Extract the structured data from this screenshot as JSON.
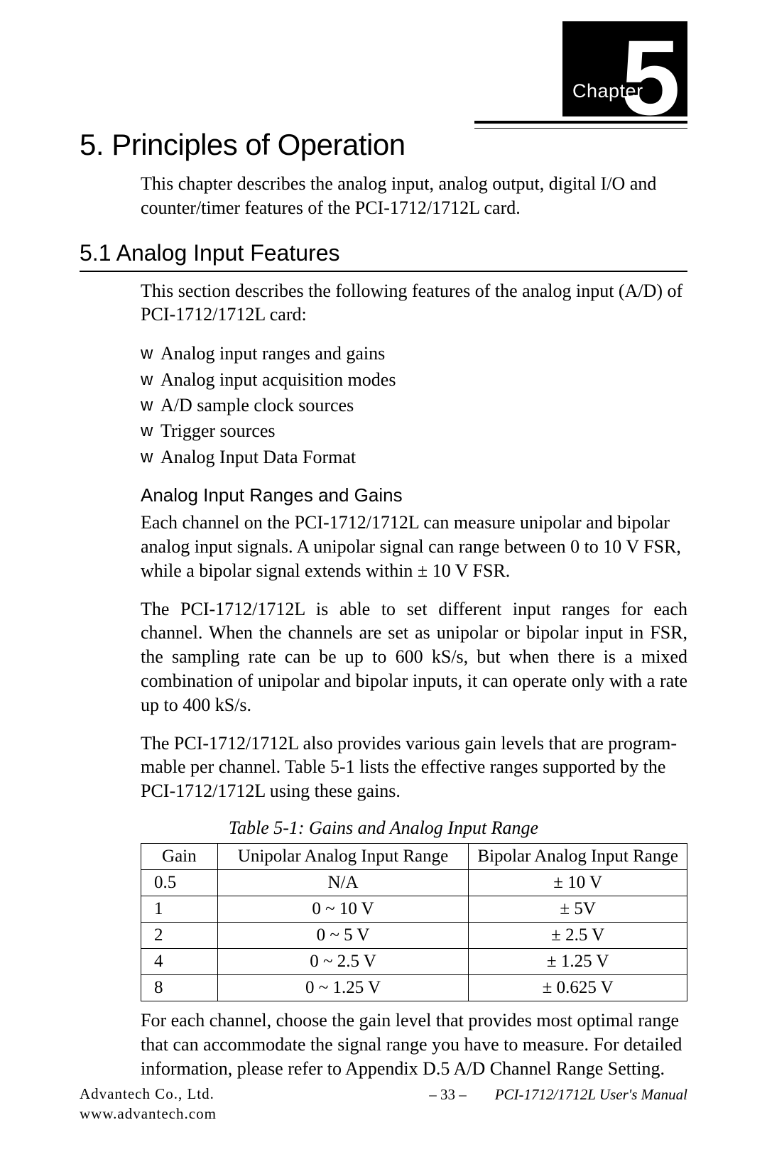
{
  "chapter_badge": {
    "label": "Chapter",
    "number": "5",
    "bg_color": "#000000",
    "fg_color": "#ffffff"
  },
  "title": "5. Principles of Operation",
  "intro_paragraph": "This chapter describes the analog input, analog output, digital I/O and counter/timer features of the PCI-1712/1712L card.",
  "section_5_1": {
    "heading": "5.1 Analog Input Features",
    "intro": "This section describes the following features of the analog input (A/D) of PCI-1712/1712L card:",
    "bullets": [
      "Analog input ranges and gains",
      "Analog input acquisition modes",
      "A/D sample clock sources",
      "Trigger sources",
      "Analog Input Data Format"
    ],
    "subsection_heading": "Analog Input Ranges and Gains",
    "para1": "Each channel on the PCI-1712/1712L can measure unipolar and bipolar analog input signals. A unipolar signal can range between 0 to 10 V FSR, while a bipolar signal extends within ± 10 V FSR.",
    "para2": "The PCI-1712/1712L is able to set different input ranges for each channel. When the channels are set as unipolar or bipolar input in FSR, the sampling rate can be up to 600 kS/s, but when there is a mixed combination of unipolar and bipolar inputs, it can operate only with a rate up to 400 kS/s.",
    "para3": "The PCI-1712/1712L also provides various gain levels that are program-mable per channel. Table 5-1 lists the effective ranges supported by the PCI-1712/1712L using these gains.",
    "table": {
      "caption": "Table 5-1: Gains and Analog Input Range",
      "columns": [
        "Gain",
        "Unipolar Analog Input Range",
        "Bipolar Analog Input Range"
      ],
      "rows": [
        [
          "0.5",
          "N/A",
          "± 10 V"
        ],
        [
          "1",
          "0 ~ 10 V",
          "± 5V"
        ],
        [
          "2",
          "0 ~ 5 V",
          "± 2.5 V"
        ],
        [
          "4",
          "0 ~ 2.5 V",
          "± 1.25 V"
        ],
        [
          "8",
          "0 ~ 1.25 V",
          "± 0.625 V"
        ]
      ],
      "col_widths_pct": [
        14,
        46,
        40
      ],
      "border_color": "#000000"
    },
    "para4": "For each channel, choose the gain level that provides most optimal range that can accommodate the signal range you have to measure. For detailed information, please refer to Appendix D.5 A/D Channel Range Setting."
  },
  "footer": {
    "company": "Advantech Co., Ltd.",
    "url": "www.advantech.com",
    "page_number": "– 33 –",
    "manual_title": "PCI-1712/1712L User's Manual"
  },
  "typography": {
    "body_font": "Times New Roman",
    "heading_font": "Arial",
    "title_fontsize_pt": 31,
    "section_fontsize_pt": 24,
    "body_fontsize_pt": 19,
    "caption_fontsize_pt": 19,
    "footer_fontsize_pt": 16
  },
  "colors": {
    "text": "#000000",
    "background": "#ffffff",
    "rule": "#000000"
  }
}
